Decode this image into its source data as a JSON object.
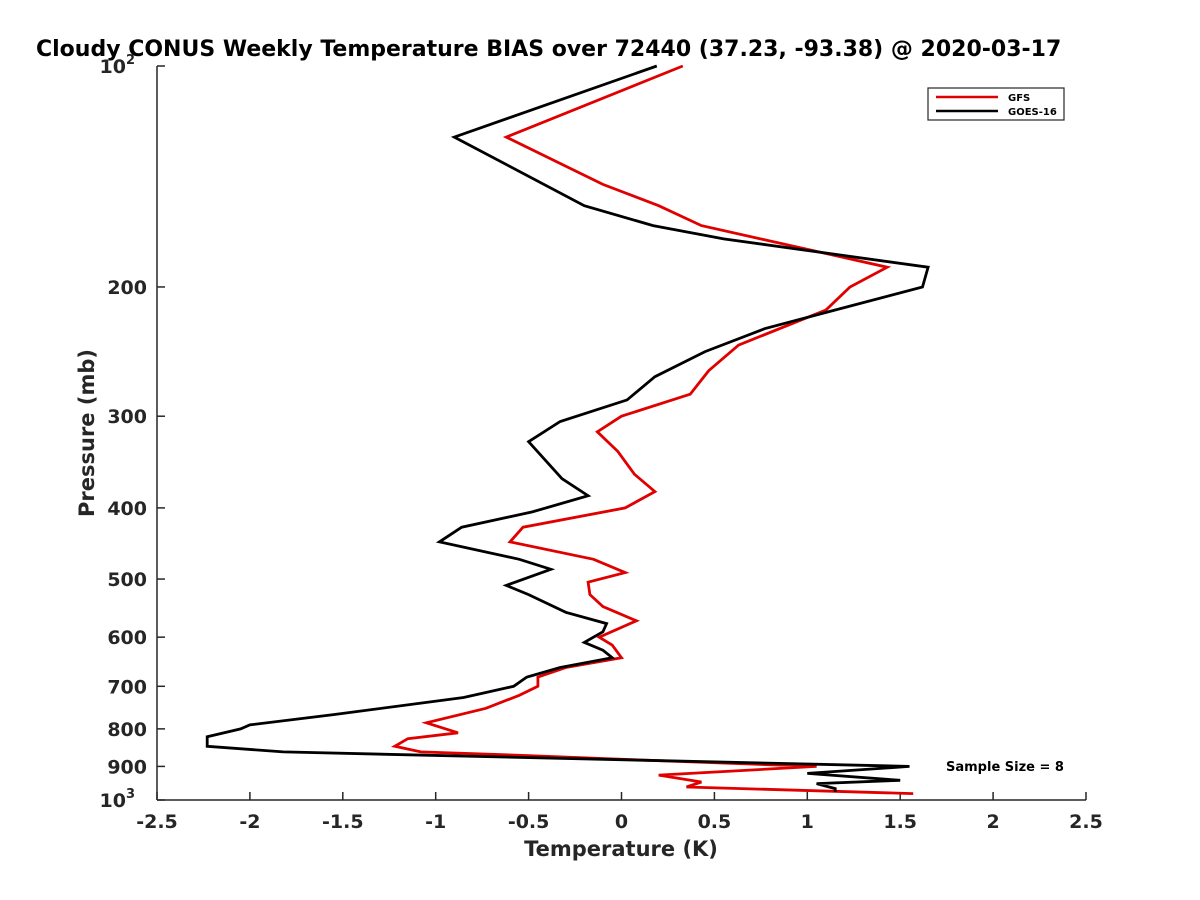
{
  "chart_data": {
    "type": "line",
    "title": "Cloudy CONUS Weekly Temperature BIAS over 72440 (37.23, -93.38) @ 2020-03-17",
    "xlabel": "Temperature (K)",
    "ylabel": "Pressure (mb)",
    "xlim": [
      -2.5,
      2.5
    ],
    "ylim": [
      100,
      1000
    ],
    "y_scale": "log",
    "y_reversed": true,
    "grid": false,
    "legend_position": "top-right",
    "x_ticks": [
      -2.5,
      -2,
      -1.5,
      -1,
      -0.5,
      0,
      0.5,
      1,
      1.5,
      2,
      2.5
    ],
    "x_tick_labels": [
      "-2.5",
      "-2",
      "-1.5",
      "-1",
      "-0.5",
      "0",
      "0.5",
      "1",
      "1.5",
      "2",
      "2.5"
    ],
    "y_ticks": [
      {
        "value": 100,
        "base": "10",
        "exp": "2"
      },
      {
        "value": 200,
        "label": "200"
      },
      {
        "value": 300,
        "label": "300"
      },
      {
        "value": 400,
        "label": "400"
      },
      {
        "value": 500,
        "label": "500"
      },
      {
        "value": 600,
        "label": "600"
      },
      {
        "value": 700,
        "label": "700"
      },
      {
        "value": 800,
        "label": "800"
      },
      {
        "value": 900,
        "label": "900"
      },
      {
        "value": 1000,
        "base": "10",
        "exp": "3"
      }
    ],
    "annotation": "Sample Size = 8",
    "series": [
      {
        "name": "GFS",
        "color": "#e00000",
        "points": [
          [
            0.33,
            100
          ],
          [
            -0.62,
            125
          ],
          [
            -0.1,
            145
          ],
          [
            0.2,
            155
          ],
          [
            0.43,
            165
          ],
          [
            1.43,
            188
          ],
          [
            1.23,
            200
          ],
          [
            1.1,
            215
          ],
          [
            0.63,
            240
          ],
          [
            0.47,
            260
          ],
          [
            0.37,
            280
          ],
          [
            0.0,
            300
          ],
          [
            -0.13,
            315
          ],
          [
            -0.02,
            335
          ],
          [
            0.07,
            360
          ],
          [
            0.18,
            380
          ],
          [
            0.02,
            400
          ],
          [
            -0.53,
            425
          ],
          [
            -0.6,
            445
          ],
          [
            -0.15,
            470
          ],
          [
            0.02,
            490
          ],
          [
            -0.18,
            505
          ],
          [
            -0.17,
            525
          ],
          [
            -0.1,
            545
          ],
          [
            0.08,
            570
          ],
          [
            -0.12,
            600
          ],
          [
            -0.05,
            615
          ],
          [
            0.0,
            640
          ],
          [
            -0.3,
            660
          ],
          [
            -0.45,
            680
          ],
          [
            -0.45,
            700
          ],
          [
            -0.55,
            720
          ],
          [
            -0.73,
            750
          ],
          [
            -1.05,
            785
          ],
          [
            -0.88,
            810
          ],
          [
            -1.15,
            825
          ],
          [
            -1.22,
            845
          ],
          [
            -1.08,
            860
          ],
          [
            -0.5,
            870
          ],
          [
            0.0,
            880
          ],
          [
            1.05,
            900
          ],
          [
            0.2,
            925
          ],
          [
            0.43,
            945
          ],
          [
            0.35,
            960
          ],
          [
            1.57,
            980
          ]
        ]
      },
      {
        "name": "GOES-16",
        "color": "#000000",
        "points": [
          [
            0.19,
            100
          ],
          [
            -0.9,
            125
          ],
          [
            -0.2,
            155
          ],
          [
            0.17,
            165
          ],
          [
            0.55,
            172
          ],
          [
            1.65,
            188
          ],
          [
            1.62,
            200
          ],
          [
            1.15,
            215
          ],
          [
            0.77,
            228
          ],
          [
            0.45,
            245
          ],
          [
            0.18,
            265
          ],
          [
            0.03,
            285
          ],
          [
            -0.33,
            305
          ],
          [
            -0.5,
            325
          ],
          [
            -0.32,
            365
          ],
          [
            -0.18,
            385
          ],
          [
            -0.48,
            405
          ],
          [
            -0.86,
            425
          ],
          [
            -0.98,
            445
          ],
          [
            -0.55,
            470
          ],
          [
            -0.38,
            485
          ],
          [
            -0.62,
            510
          ],
          [
            -0.5,
            525
          ],
          [
            -0.3,
            555
          ],
          [
            -0.08,
            575
          ],
          [
            -0.1,
            590
          ],
          [
            -0.2,
            610
          ],
          [
            -0.1,
            625
          ],
          [
            -0.05,
            640
          ],
          [
            -0.33,
            660
          ],
          [
            -0.51,
            680
          ],
          [
            -0.58,
            700
          ],
          [
            -0.85,
            725
          ],
          [
            -1.55,
            765
          ],
          [
            -2.0,
            790
          ],
          [
            -2.05,
            800
          ],
          [
            -2.23,
            820
          ],
          [
            -2.23,
            845
          ],
          [
            -1.82,
            860
          ],
          [
            1.55,
            900
          ],
          [
            1.0,
            920
          ],
          [
            1.5,
            940
          ],
          [
            1.05,
            950
          ],
          [
            1.15,
            965
          ],
          [
            1.15,
            975
          ]
        ]
      }
    ]
  }
}
